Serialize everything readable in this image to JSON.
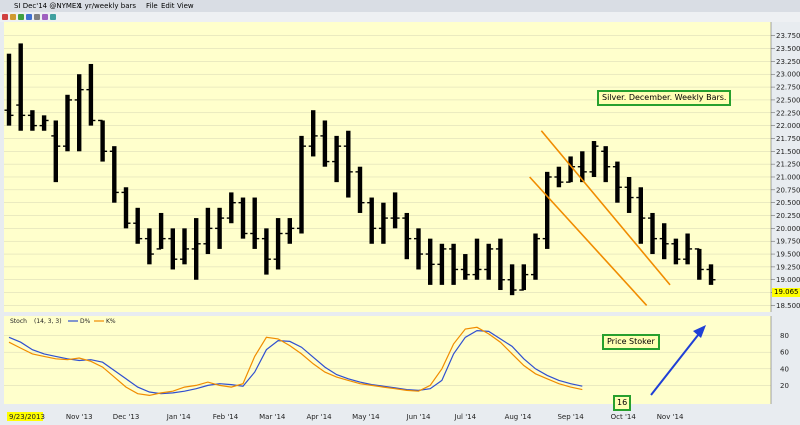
{
  "window": {
    "symbol": "SI Dec'14 @NYMEX",
    "interval": "1 yr/weekly bars",
    "menu": [
      "File",
      "Edit",
      "View"
    ]
  },
  "colors": {
    "chart_bg": "#ffffcc",
    "bar": "#000000",
    "channel": "#f08c00",
    "stoch_d": "#2f4fd0",
    "stoch_k": "#f08c00",
    "arrow": "#1f3fd6",
    "label_border": "#27a02e",
    "price_marker": "#ffff00"
  },
  "chart_data": [
    {
      "type": "ohlc",
      "title": "Silver. December. Weekly Bars.",
      "price_marker": "19.065",
      "ylim": [
        18.45,
        23.9
      ],
      "yticks": [
        "18.500",
        "18.750",
        "19.000",
        "19.250",
        "19.500",
        "19.750",
        "20.000",
        "20.250",
        "20.500",
        "20.750",
        "21.000",
        "21.250",
        "21.500",
        "21.750",
        "22.000",
        "22.250",
        "22.500",
        "22.750",
        "23.000",
        "23.250",
        "23.500",
        "23.750"
      ],
      "xlabels": [
        {
          "label": "9/23/2013",
          "week": 0
        },
        {
          "label": "Nov '13",
          "week": 6
        },
        {
          "label": "Dec '13",
          "week": 10
        },
        {
          "label": "Jan '14",
          "week": 14.5
        },
        {
          "label": "Feb '14",
          "week": 18.5
        },
        {
          "label": "Mar '14",
          "week": 22.5
        },
        {
          "label": "Apr '14",
          "week": 26.5
        },
        {
          "label": "May '14",
          "week": 30.5
        },
        {
          "label": "Jun '14",
          "week": 35
        },
        {
          "label": "Jul '14",
          "week": 39
        },
        {
          "label": "Aug '14",
          "week": 43.5
        },
        {
          "label": "Sep '14",
          "week": 48
        },
        {
          "label": "Oct '14",
          "week": 52.5
        },
        {
          "label": "Nov '14",
          "week": 56.5
        }
      ],
      "bars": [
        {
          "o": 22.3,
          "h": 23.4,
          "l": 22.0,
          "c": 22.2
        },
        {
          "o": 22.4,
          "h": 23.6,
          "l": 21.9,
          "c": 22.2
        },
        {
          "o": 22.2,
          "h": 22.3,
          "l": 21.9,
          "c": 22.0
        },
        {
          "o": 22.0,
          "h": 22.2,
          "l": 21.9,
          "c": 22.1
        },
        {
          "o": 21.8,
          "h": 22.1,
          "l": 20.9,
          "c": 21.6
        },
        {
          "o": 21.6,
          "h": 22.6,
          "l": 21.5,
          "c": 22.5
        },
        {
          "o": 22.5,
          "h": 23.0,
          "l": 21.5,
          "c": 22.7
        },
        {
          "o": 22.7,
          "h": 23.2,
          "l": 22.0,
          "c": 22.1
        },
        {
          "o": 22.1,
          "h": 22.1,
          "l": 21.3,
          "c": 21.5
        },
        {
          "o": 21.5,
          "h": 21.6,
          "l": 20.5,
          "c": 20.7
        },
        {
          "o": 20.7,
          "h": 20.8,
          "l": 20.0,
          "c": 20.1
        },
        {
          "o": 20.1,
          "h": 20.4,
          "l": 19.7,
          "c": 19.8
        },
        {
          "o": 19.8,
          "h": 20.0,
          "l": 19.3,
          "c": 19.5
        },
        {
          "o": 19.6,
          "h": 20.3,
          "l": 19.6,
          "c": 19.8
        },
        {
          "o": 19.8,
          "h": 20.0,
          "l": 19.2,
          "c": 19.4
        },
        {
          "o": 19.4,
          "h": 20.0,
          "l": 19.3,
          "c": 19.6
        },
        {
          "o": 19.6,
          "h": 20.2,
          "l": 19.0,
          "c": 19.7
        },
        {
          "o": 19.7,
          "h": 20.4,
          "l": 19.5,
          "c": 20.0
        },
        {
          "o": 20.0,
          "h": 20.4,
          "l": 19.6,
          "c": 20.2
        },
        {
          "o": 20.2,
          "h": 20.7,
          "l": 20.1,
          "c": 20.5
        },
        {
          "o": 20.5,
          "h": 20.6,
          "l": 19.8,
          "c": 19.9
        },
        {
          "o": 19.9,
          "h": 20.6,
          "l": 19.6,
          "c": 19.8
        },
        {
          "o": 19.8,
          "h": 20.0,
          "l": 19.1,
          "c": 19.4
        },
        {
          "o": 19.4,
          "h": 20.2,
          "l": 19.2,
          "c": 19.9
        },
        {
          "o": 19.9,
          "h": 20.2,
          "l": 19.7,
          "c": 20.0
        },
        {
          "o": 20.0,
          "h": 21.8,
          "l": 19.9,
          "c": 21.6
        },
        {
          "o": 21.6,
          "h": 22.3,
          "l": 21.4,
          "c": 21.8
        },
        {
          "o": 21.8,
          "h": 22.1,
          "l": 21.2,
          "c": 21.3
        },
        {
          "o": 21.3,
          "h": 21.8,
          "l": 20.9,
          "c": 21.6
        },
        {
          "o": 21.6,
          "h": 21.9,
          "l": 20.6,
          "c": 21.1
        },
        {
          "o": 21.1,
          "h": 21.2,
          "l": 20.3,
          "c": 20.5
        },
        {
          "o": 20.5,
          "h": 20.6,
          "l": 19.7,
          "c": 20.0
        },
        {
          "o": 20.0,
          "h": 20.5,
          "l": 19.7,
          "c": 20.2
        },
        {
          "o": 20.2,
          "h": 20.7,
          "l": 20.0,
          "c": 20.2
        },
        {
          "o": 20.2,
          "h": 20.3,
          "l": 19.4,
          "c": 19.8
        },
        {
          "o": 19.8,
          "h": 20.0,
          "l": 19.2,
          "c": 19.5
        },
        {
          "o": 19.5,
          "h": 19.8,
          "l": 18.9,
          "c": 19.3
        },
        {
          "o": 19.3,
          "h": 19.7,
          "l": 18.9,
          "c": 19.6
        },
        {
          "o": 19.6,
          "h": 19.7,
          "l": 18.9,
          "c": 19.2
        },
        {
          "o": 19.2,
          "h": 19.5,
          "l": 19.0,
          "c": 19.1
        },
        {
          "o": 19.1,
          "h": 19.8,
          "l": 19.0,
          "c": 19.2
        },
        {
          "o": 19.2,
          "h": 19.7,
          "l": 19.0,
          "c": 19.6
        },
        {
          "o": 19.6,
          "h": 19.8,
          "l": 18.8,
          "c": 19.0
        },
        {
          "o": 19.0,
          "h": 19.3,
          "l": 18.7,
          "c": 18.8
        },
        {
          "o": 18.8,
          "h": 19.3,
          "l": 18.8,
          "c": 19.1
        },
        {
          "o": 19.1,
          "h": 19.9,
          "l": 19.0,
          "c": 19.8
        },
        {
          "o": 19.8,
          "h": 21.1,
          "l": 19.6,
          "c": 21.0
        },
        {
          "o": 21.0,
          "h": 21.2,
          "l": 20.8,
          "c": 20.9
        },
        {
          "o": 20.9,
          "h": 21.4,
          "l": 20.9,
          "c": 21.2
        },
        {
          "o": 21.2,
          "h": 21.5,
          "l": 20.9,
          "c": 21.1
        },
        {
          "o": 21.1,
          "h": 21.7,
          "l": 21.0,
          "c": 21.6
        },
        {
          "o": 21.5,
          "h": 21.6,
          "l": 20.9,
          "c": 21.2
        },
        {
          "o": 21.2,
          "h": 21.3,
          "l": 20.5,
          "c": 20.8
        },
        {
          "o": 20.8,
          "h": 21.0,
          "l": 20.3,
          "c": 20.6
        },
        {
          "o": 20.6,
          "h": 20.8,
          "l": 19.7,
          "c": 20.2
        },
        {
          "o": 20.2,
          "h": 20.3,
          "l": 19.5,
          "c": 19.8
        },
        {
          "o": 19.8,
          "h": 20.1,
          "l": 19.4,
          "c": 19.7
        },
        {
          "o": 19.7,
          "h": 19.8,
          "l": 19.3,
          "c": 19.4
        },
        {
          "o": 19.4,
          "h": 19.9,
          "l": 19.3,
          "c": 19.6
        },
        {
          "o": 19.6,
          "h": 19.6,
          "l": 19.0,
          "c": 19.2
        },
        {
          "o": 19.2,
          "h": 19.3,
          "l": 18.9,
          "c": 19.0
        }
      ],
      "channel": [
        {
          "x1": 45.5,
          "y1": 21.9,
          "x2": 56.5,
          "y2": 18.9
        },
        {
          "x1": 44.5,
          "y1": 21.0,
          "x2": 54.5,
          "y2": 18.5
        }
      ]
    },
    {
      "type": "line",
      "indicator": "Stoch",
      "params": "(14, 3, 3)",
      "legend": [
        "D%",
        "K%"
      ],
      "ylim": [
        0,
        100
      ],
      "yticks": [
        20,
        40,
        60,
        80
      ],
      "annotation": "Price Stoker",
      "current_value": "16",
      "series": [
        {
          "name": "D%",
          "points": [
            [
              0,
              78
            ],
            [
              1,
              72
            ],
            [
              2,
              63
            ],
            [
              3,
              58
            ],
            [
              4,
              55
            ],
            [
              5,
              52
            ],
            [
              6,
              50
            ],
            [
              7,
              51
            ],
            [
              8,
              48
            ],
            [
              9,
              38
            ],
            [
              10,
              28
            ],
            [
              11,
              18
            ],
            [
              12,
              12
            ],
            [
              13,
              10
            ],
            [
              14,
              11
            ],
            [
              15,
              13
            ],
            [
              16,
              16
            ],
            [
              17,
              20
            ],
            [
              18,
              22
            ],
            [
              19,
              21
            ],
            [
              20,
              19
            ],
            [
              21,
              36
            ],
            [
              22,
              63
            ],
            [
              23,
              74
            ],
            [
              24,
              73
            ],
            [
              25,
              66
            ],
            [
              26,
              54
            ],
            [
              27,
              42
            ],
            [
              28,
              33
            ],
            [
              29,
              28
            ],
            [
              30,
              24
            ],
            [
              31,
              21
            ],
            [
              32,
              19
            ],
            [
              33,
              17
            ],
            [
              34,
              15
            ],
            [
              35,
              14
            ],
            [
              36,
              16
            ],
            [
              37,
              26
            ],
            [
              38,
              58
            ],
            [
              39,
              78
            ],
            [
              40,
              86
            ],
            [
              41,
              85
            ],
            [
              42,
              76
            ],
            [
              43,
              67
            ],
            [
              44,
              52
            ],
            [
              45,
              40
            ],
            [
              46,
              32
            ],
            [
              47,
              26
            ],
            [
              48,
              22
            ],
            [
              49,
              19
            ]
          ]
        },
        {
          "name": "K%",
          "points": [
            [
              0,
              72
            ],
            [
              1,
              65
            ],
            [
              2,
              58
            ],
            [
              3,
              55
            ],
            [
              4,
              52
            ],
            [
              5,
              51
            ],
            [
              6,
              53
            ],
            [
              7,
              49
            ],
            [
              8,
              42
            ],
            [
              9,
              30
            ],
            [
              10,
              18
            ],
            [
              11,
              10
            ],
            [
              12,
              8
            ],
            [
              13,
              11
            ],
            [
              14,
              13
            ],
            [
              15,
              18
            ],
            [
              16,
              20
            ],
            [
              17,
              24
            ],
            [
              18,
              20
            ],
            [
              19,
              18
            ],
            [
              20,
              22
            ],
            [
              21,
              55
            ],
            [
              22,
              78
            ],
            [
              23,
              76
            ],
            [
              24,
              68
            ],
            [
              25,
              58
            ],
            [
              26,
              46
            ],
            [
              27,
              36
            ],
            [
              28,
              30
            ],
            [
              29,
              26
            ],
            [
              30,
              22
            ],
            [
              31,
              20
            ],
            [
              32,
              18
            ],
            [
              33,
              16
            ],
            [
              34,
              14
            ],
            [
              35,
              13
            ],
            [
              36,
              20
            ],
            [
              37,
              40
            ],
            [
              38,
              70
            ],
            [
              39,
              88
            ],
            [
              40,
              90
            ],
            [
              41,
              82
            ],
            [
              42,
              72
            ],
            [
              43,
              58
            ],
            [
              44,
              44
            ],
            [
              45,
              34
            ],
            [
              46,
              28
            ],
            [
              47,
              22
            ],
            [
              48,
              18
            ],
            [
              49,
              15
            ]
          ]
        }
      ]
    }
  ]
}
